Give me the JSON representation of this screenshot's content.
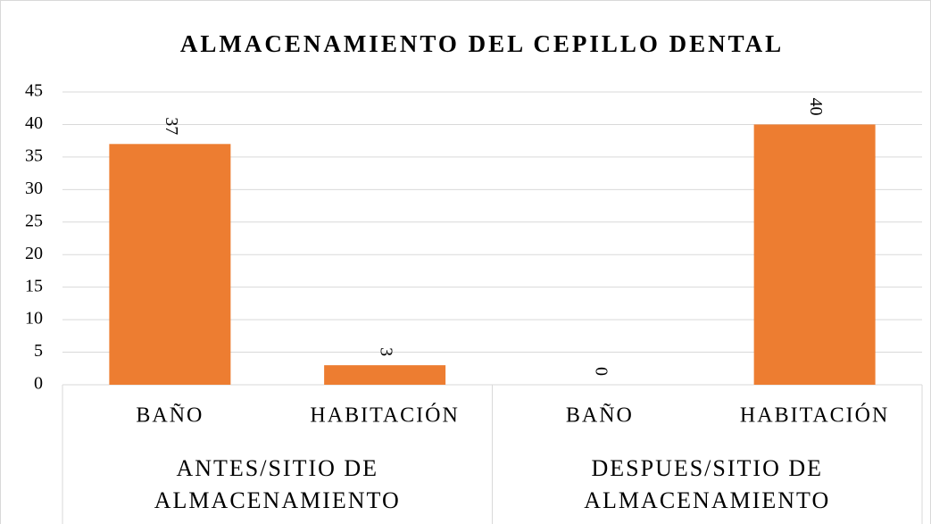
{
  "chart_data": {
    "type": "bar",
    "title": "ALMACENAMIENTO DEL CEPILLO DENTAL",
    "categories": [
      "BAÑO",
      "HABITACIÓN",
      "BAÑO",
      "HABITACIÓN"
    ],
    "groups": [
      "ANTES/SITIO DE ALMACENAMIENTO",
      "DESPUES/SITIO DE ALMACENAMIENTO"
    ],
    "values": [
      37,
      3,
      0,
      40
    ],
    "color": "#ed7d31",
    "ylim": [
      0,
      45
    ],
    "yticks": [
      0,
      5,
      10,
      15,
      20,
      25,
      30,
      35,
      40,
      45
    ],
    "grid": true
  }
}
